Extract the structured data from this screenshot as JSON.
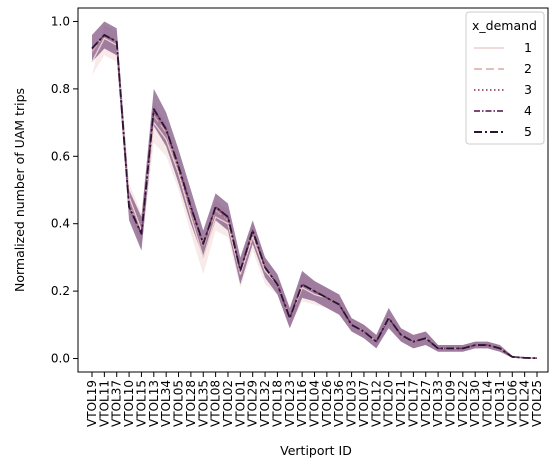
{
  "chart_data": {
    "type": "line",
    "xlabel": "Vertiport ID",
    "ylabel": "Normalized number of UAM trips",
    "ylim": [
      -0.04,
      1.04
    ],
    "yticks": [
      0.0,
      0.2,
      0.4,
      0.6,
      0.8,
      1.0
    ],
    "ytick_labels": [
      "0.0",
      "0.2",
      "0.4",
      "0.6",
      "0.8",
      "1.0"
    ],
    "grid": false,
    "legend_position": "top-right",
    "legend_title": "x_demand",
    "categories": [
      "VTOL19",
      "VTOL11",
      "VTOL37",
      "VTOL10",
      "VTOL15",
      "VTOL13",
      "VTOL34",
      "VTOL05",
      "VTOL28",
      "VTOL35",
      "VTOL08",
      "VTOL02",
      "VTOL01",
      "VTOL29",
      "VTOL32",
      "VTOL18",
      "VTOL23",
      "VTOL16",
      "VTOL04",
      "VTOL26",
      "VTOL36",
      "VTOL03",
      "VTOL07",
      "VTOL12",
      "VTOL20",
      "VTOL21",
      "VTOL17",
      "VTOL27",
      "VTOL33",
      "VTOL09",
      "VTOL22",
      "VTOL30",
      "VTOL14",
      "VTOL31",
      "VTOL06",
      "VTOL24",
      "VTOL25"
    ],
    "series": [
      {
        "name": "1",
        "color": "#ead0cd",
        "dash": "",
        "width": 1.3,
        "values": [
          0.88,
          0.95,
          0.93,
          0.48,
          0.38,
          0.7,
          0.65,
          0.55,
          0.42,
          0.3,
          0.42,
          0.4,
          0.25,
          0.36,
          0.26,
          0.22,
          0.12,
          0.21,
          0.19,
          0.18,
          0.16,
          0.1,
          0.08,
          0.05,
          0.12,
          0.07,
          0.05,
          0.06,
          0.03,
          0.03,
          0.03,
          0.04,
          0.04,
          0.03,
          0.005,
          0.002,
          0.001
        ],
        "band": [
          0.84,
          0.99,
          0.97,
          0.52,
          0.43,
          0.76,
          0.7,
          0.6,
          0.47,
          0.35,
          0.47,
          0.44,
          0.29,
          0.4,
          0.3,
          0.25,
          0.15,
          0.25,
          0.23,
          0.21,
          0.19,
          0.12,
          0.1,
          0.07,
          0.14,
          0.09,
          0.07,
          0.08,
          0.04,
          0.04,
          0.04,
          0.05,
          0.05,
          0.04,
          0.008,
          0.004,
          0.002
        ],
        "band_low": [
          0.84,
          0.9,
          0.88,
          0.44,
          0.33,
          0.64,
          0.6,
          0.5,
          0.37,
          0.25,
          0.38,
          0.36,
          0.21,
          0.32,
          0.22,
          0.19,
          0.09,
          0.17,
          0.16,
          0.15,
          0.13,
          0.08,
          0.06,
          0.03,
          0.1,
          0.05,
          0.03,
          0.04,
          0.02,
          0.02,
          0.02,
          0.03,
          0.03,
          0.02,
          0.002,
          0.0,
          0.0
        ]
      },
      {
        "name": "2",
        "color": "#d9a9a7",
        "dash": "8,4",
        "width": 1.3,
        "values": [
          0.91,
          0.96,
          0.94,
          0.46,
          0.37,
          0.72,
          0.67,
          0.56,
          0.44,
          0.33,
          0.44,
          0.41,
          0.26,
          0.37,
          0.27,
          0.22,
          0.12,
          0.22,
          0.2,
          0.18,
          0.16,
          0.1,
          0.08,
          0.05,
          0.12,
          0.07,
          0.05,
          0.06,
          0.03,
          0.03,
          0.03,
          0.04,
          0.04,
          0.03,
          0.005,
          0.002,
          0.001
        ]
      },
      {
        "name": "3",
        "color": "#a4607d",
        "dash": "1.5,2.5",
        "width": 1.6,
        "values": [
          0.92,
          0.96,
          0.94,
          0.46,
          0.37,
          0.73,
          0.68,
          0.56,
          0.44,
          0.34,
          0.45,
          0.41,
          0.26,
          0.37,
          0.27,
          0.22,
          0.12,
          0.22,
          0.2,
          0.18,
          0.16,
          0.1,
          0.08,
          0.05,
          0.12,
          0.07,
          0.05,
          0.06,
          0.03,
          0.03,
          0.03,
          0.04,
          0.04,
          0.03,
          0.005,
          0.002,
          0.001
        ]
      },
      {
        "name": "4",
        "color": "#6a2f66",
        "dash": "6,2,1.5,2",
        "width": 1.5,
        "values": [
          0.92,
          0.96,
          0.94,
          0.45,
          0.37,
          0.74,
          0.68,
          0.57,
          0.45,
          0.34,
          0.45,
          0.42,
          0.26,
          0.38,
          0.27,
          0.22,
          0.12,
          0.22,
          0.2,
          0.18,
          0.16,
          0.1,
          0.08,
          0.05,
          0.12,
          0.07,
          0.05,
          0.06,
          0.03,
          0.03,
          0.03,
          0.04,
          0.04,
          0.03,
          0.005,
          0.002,
          0.001
        ],
        "band": [
          0.96,
          1.0,
          0.98,
          0.5,
          0.42,
          0.8,
          0.73,
          0.62,
          0.5,
          0.38,
          0.49,
          0.46,
          0.3,
          0.41,
          0.3,
          0.25,
          0.15,
          0.26,
          0.23,
          0.21,
          0.19,
          0.12,
          0.1,
          0.07,
          0.15,
          0.09,
          0.07,
          0.08,
          0.04,
          0.04,
          0.04,
          0.05,
          0.05,
          0.04,
          0.008,
          0.004,
          0.002
        ],
        "band_low": [
          0.88,
          0.92,
          0.9,
          0.41,
          0.32,
          0.69,
          0.63,
          0.52,
          0.4,
          0.3,
          0.41,
          0.38,
          0.22,
          0.34,
          0.24,
          0.19,
          0.09,
          0.18,
          0.17,
          0.15,
          0.13,
          0.08,
          0.06,
          0.03,
          0.09,
          0.05,
          0.03,
          0.04,
          0.02,
          0.02,
          0.02,
          0.03,
          0.03,
          0.02,
          0.002,
          0.0,
          0.0
        ]
      },
      {
        "name": "5",
        "color": "#2a1534",
        "dash": "8,3,2,3",
        "width": 1.8,
        "values": [
          0.92,
          0.96,
          0.94,
          0.45,
          0.37,
          0.74,
          0.68,
          0.57,
          0.45,
          0.34,
          0.45,
          0.42,
          0.26,
          0.38,
          0.27,
          0.22,
          0.12,
          0.22,
          0.2,
          0.18,
          0.16,
          0.1,
          0.08,
          0.05,
          0.12,
          0.07,
          0.05,
          0.06,
          0.03,
          0.03,
          0.03,
          0.04,
          0.04,
          0.03,
          0.005,
          0.002,
          0.001
        ]
      }
    ]
  }
}
